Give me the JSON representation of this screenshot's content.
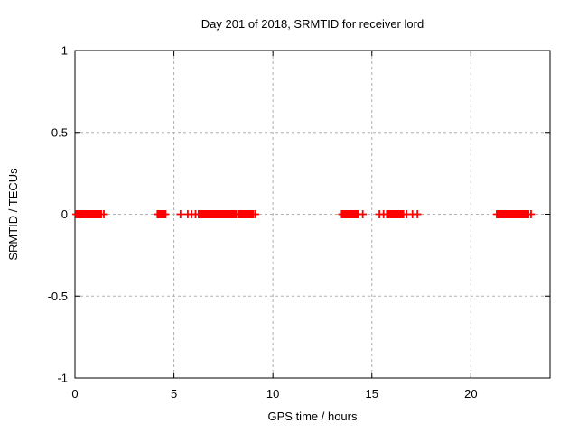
{
  "background_color": "#ffffff",
  "chart_data": {
    "type": "scatter",
    "title": "Day 201 of 2018, SRMTID for receiver lord",
    "xlabel": "GPS time / hours",
    "ylabel": "SRMTID / TECUs",
    "xlim": [
      0,
      24
    ],
    "ylim": [
      -1,
      1
    ],
    "xticks": [
      0,
      5,
      10,
      15,
      20
    ],
    "yticks": [
      -1,
      -0.5,
      0,
      0.5,
      1
    ],
    "grid": true,
    "grid_style": "dashed",
    "grid_color": "#b0b0b0",
    "border_color": "#000000",
    "legend_position": "none",
    "marker": "plus",
    "marker_color": "#ff0000",
    "marker_size_px": 9,
    "y_constant": 0,
    "note": "All plotted SRMTID values are 0 TECUs; data appears as dense runs and isolated plus markers along y=0",
    "dense_segments_hours": [
      [
        0.05,
        1.32
      ],
      [
        4.17,
        4.37
      ],
      [
        4.41,
        4.58
      ],
      [
        6.25,
        8.15
      ],
      [
        8.27,
        8.99
      ],
      [
        13.48,
        13.7
      ],
      [
        13.78,
        14.01
      ],
      [
        14.04,
        14.31
      ],
      [
        15.76,
        16.59
      ],
      [
        21.31,
        22.91
      ]
    ],
    "isolated_points_hours": [
      1.46,
      5.33,
      5.7,
      5.89,
      6.09,
      9.1,
      14.54,
      15.38,
      15.59,
      16.75,
      17.05,
      17.3,
      23.04
    ]
  }
}
